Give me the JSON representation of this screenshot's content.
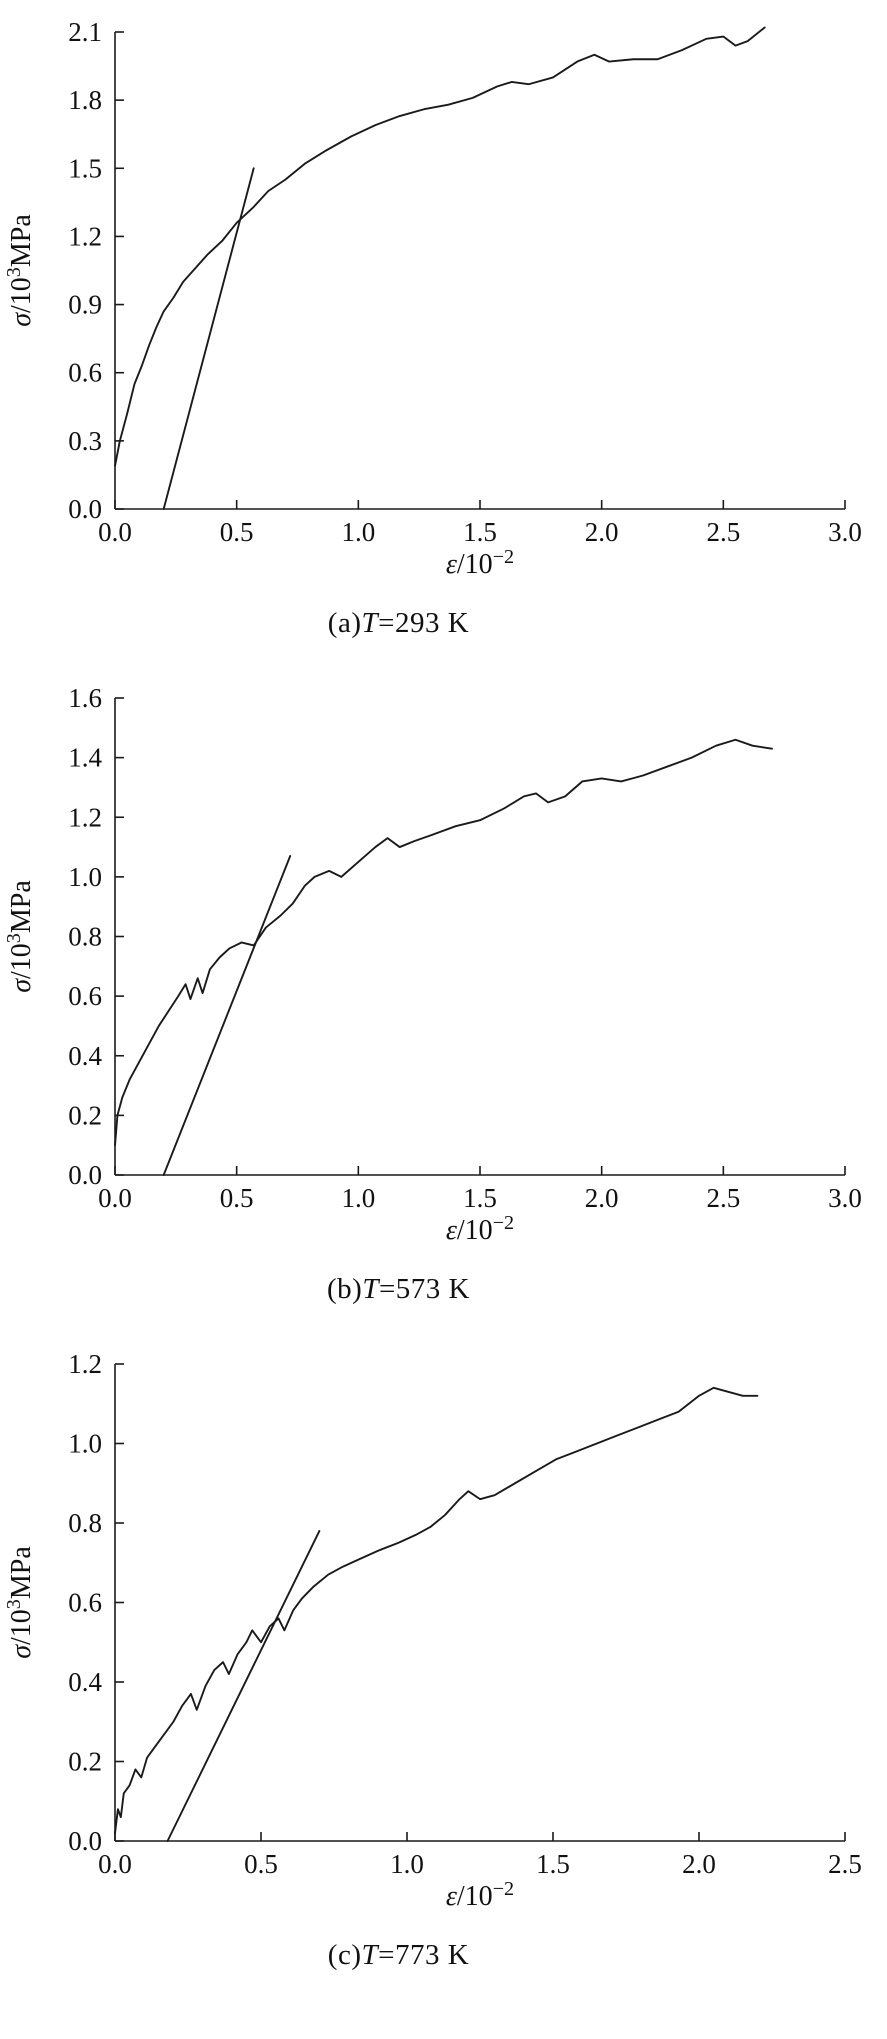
{
  "style": {
    "background": "#ffffff",
    "line_color": "#1a1a1a",
    "text_color": "#111111"
  },
  "chart_data": [
    {
      "id": "a",
      "type": "line",
      "caption": {
        "prefix": "(a)",
        "symbol": "T",
        "suffix": "=293 K"
      },
      "xlabel": "ε/10⁻²",
      "ylabel": "σ/10³MPa",
      "xlabel_parts": [
        {
          "t": "ε",
          "i": 1
        },
        {
          "t": "/10"
        },
        {
          "t": "−2",
          "s": 1
        }
      ],
      "ylabel_parts": [
        {
          "t": "σ",
          "i": 1
        },
        {
          "t": "/10"
        },
        {
          "t": "3",
          "s": 1
        },
        {
          "t": "MPa"
        }
      ],
      "xlim": [
        0,
        3.0
      ],
      "ylim": [
        0,
        2.1
      ],
      "xticks": [
        0.0,
        0.5,
        1.0,
        1.5,
        2.0,
        2.5,
        3.0
      ],
      "yticks": [
        0.0,
        0.3,
        0.6,
        0.9,
        1.2,
        1.5,
        1.8,
        2.1
      ],
      "grid": false,
      "legend": null,
      "series": [
        {
          "name": "stress-strain-curve",
          "points": [
            [
              0,
              0.19
            ],
            [
              0.02,
              0.3
            ],
            [
              0.05,
              0.42
            ],
            [
              0.08,
              0.55
            ],
            [
              0.11,
              0.63
            ],
            [
              0.14,
              0.72
            ],
            [
              0.17,
              0.8
            ],
            [
              0.2,
              0.87
            ],
            [
              0.24,
              0.93
            ],
            [
              0.28,
              1.0
            ],
            [
              0.33,
              1.06
            ],
            [
              0.38,
              1.12
            ],
            [
              0.44,
              1.18
            ],
            [
              0.5,
              1.26
            ],
            [
              0.57,
              1.33
            ],
            [
              0.63,
              1.4
            ],
            [
              0.7,
              1.45
            ],
            [
              0.78,
              1.52
            ],
            [
              0.87,
              1.58
            ],
            [
              0.97,
              1.64
            ],
            [
              1.07,
              1.69
            ],
            [
              1.17,
              1.73
            ],
            [
              1.27,
              1.76
            ],
            [
              1.37,
              1.78
            ],
            [
              1.47,
              1.81
            ],
            [
              1.57,
              1.86
            ],
            [
              1.63,
              1.88
            ],
            [
              1.7,
              1.87
            ],
            [
              1.8,
              1.9
            ],
            [
              1.9,
              1.97
            ],
            [
              1.97,
              2.0
            ],
            [
              2.03,
              1.97
            ],
            [
              2.13,
              1.98
            ],
            [
              2.23,
              1.98
            ],
            [
              2.33,
              2.02
            ],
            [
              2.43,
              2.07
            ],
            [
              2.5,
              2.08
            ],
            [
              2.55,
              2.04
            ],
            [
              2.6,
              2.06
            ],
            [
              2.67,
              2.12
            ]
          ]
        },
        {
          "name": "elastic-tangent-line",
          "points": [
            [
              0.2,
              0
            ],
            [
              0.57,
              1.5
            ]
          ]
        }
      ]
    },
    {
      "id": "b",
      "type": "line",
      "caption": {
        "prefix": "(b)",
        "symbol": "T",
        "suffix": "=573 K"
      },
      "xlabel": "ε/10⁻²",
      "ylabel": "σ/10³MPa",
      "xlabel_parts": [
        {
          "t": "ε",
          "i": 1
        },
        {
          "t": "/10"
        },
        {
          "t": "−2",
          "s": 1
        }
      ],
      "ylabel_parts": [
        {
          "t": "σ",
          "i": 1
        },
        {
          "t": "/10"
        },
        {
          "t": "3",
          "s": 1
        },
        {
          "t": "MPa"
        }
      ],
      "xlim": [
        0,
        3.0
      ],
      "ylim": [
        0,
        1.6
      ],
      "xticks": [
        0.0,
        0.5,
        1.0,
        1.5,
        2.0,
        2.5,
        3.0
      ],
      "yticks": [
        0.0,
        0.2,
        0.4,
        0.6,
        0.8,
        1.0,
        1.2,
        1.4,
        1.6
      ],
      "grid": false,
      "legend": null,
      "series": [
        {
          "name": "stress-strain-curve",
          "points": [
            [
              0,
              0.1
            ],
            [
              0.01,
              0.2
            ],
            [
              0.03,
              0.26
            ],
            [
              0.06,
              0.32
            ],
            [
              0.1,
              0.38
            ],
            [
              0.14,
              0.44
            ],
            [
              0.18,
              0.5
            ],
            [
              0.22,
              0.55
            ],
            [
              0.26,
              0.6
            ],
            [
              0.29,
              0.64
            ],
            [
              0.31,
              0.59
            ],
            [
              0.34,
              0.66
            ],
            [
              0.36,
              0.61
            ],
            [
              0.39,
              0.69
            ],
            [
              0.43,
              0.73
            ],
            [
              0.47,
              0.76
            ],
            [
              0.52,
              0.78
            ],
            [
              0.57,
              0.77
            ],
            [
              0.62,
              0.83
            ],
            [
              0.68,
              0.87
            ],
            [
              0.73,
              0.91
            ],
            [
              0.78,
              0.97
            ],
            [
              0.82,
              1.0
            ],
            [
              0.88,
              1.02
            ],
            [
              0.93,
              1.0
            ],
            [
              1.0,
              1.05
            ],
            [
              1.07,
              1.1
            ],
            [
              1.12,
              1.13
            ],
            [
              1.17,
              1.1
            ],
            [
              1.23,
              1.12
            ],
            [
              1.3,
              1.14
            ],
            [
              1.4,
              1.17
            ],
            [
              1.5,
              1.19
            ],
            [
              1.6,
              1.23
            ],
            [
              1.68,
              1.27
            ],
            [
              1.73,
              1.28
            ],
            [
              1.78,
              1.25
            ],
            [
              1.85,
              1.27
            ],
            [
              1.92,
              1.32
            ],
            [
              2.0,
              1.33
            ],
            [
              2.08,
              1.32
            ],
            [
              2.17,
              1.34
            ],
            [
              2.27,
              1.37
            ],
            [
              2.37,
              1.4
            ],
            [
              2.47,
              1.44
            ],
            [
              2.55,
              1.46
            ],
            [
              2.62,
              1.44
            ],
            [
              2.7,
              1.43
            ]
          ]
        },
        {
          "name": "elastic-tangent-line",
          "points": [
            [
              0.2,
              0
            ],
            [
              0.72,
              1.07
            ]
          ]
        }
      ]
    },
    {
      "id": "c",
      "type": "line",
      "caption": {
        "prefix": "(c)",
        "symbol": "T",
        "suffix": "=773 K"
      },
      "xlabel": "ε/10⁻²",
      "ylabel": "σ/10³MPa",
      "xlabel_parts": [
        {
          "t": "ε",
          "i": 1
        },
        {
          "t": "/10"
        },
        {
          "t": "−2",
          "s": 1
        }
      ],
      "ylabel_parts": [
        {
          "t": "σ",
          "i": 1
        },
        {
          "t": "/10"
        },
        {
          "t": "3",
          "s": 1
        },
        {
          "t": "MPa"
        }
      ],
      "xlim": [
        0,
        2.5
      ],
      "ylim": [
        0,
        1.2
      ],
      "xticks": [
        0.0,
        0.5,
        1.0,
        1.5,
        2.0,
        2.5
      ],
      "yticks": [
        0.0,
        0.2,
        0.4,
        0.6,
        0.8,
        1.0,
        1.2
      ],
      "grid": false,
      "legend": null,
      "series": [
        {
          "name": "stress-strain-curve",
          "points": [
            [
              0,
              0.02
            ],
            [
              0.01,
              0.08
            ],
            [
              0.02,
              0.06
            ],
            [
              0.03,
              0.12
            ],
            [
              0.05,
              0.14
            ],
            [
              0.07,
              0.18
            ],
            [
              0.09,
              0.16
            ],
            [
              0.11,
              0.21
            ],
            [
              0.14,
              0.24
            ],
            [
              0.17,
              0.27
            ],
            [
              0.2,
              0.3
            ],
            [
              0.23,
              0.34
            ],
            [
              0.26,
              0.37
            ],
            [
              0.28,
              0.33
            ],
            [
              0.31,
              0.39
            ],
            [
              0.34,
              0.43
            ],
            [
              0.37,
              0.45
            ],
            [
              0.39,
              0.42
            ],
            [
              0.42,
              0.47
            ],
            [
              0.45,
              0.5
            ],
            [
              0.47,
              0.53
            ],
            [
              0.5,
              0.5
            ],
            [
              0.53,
              0.54
            ],
            [
              0.56,
              0.56
            ],
            [
              0.58,
              0.53
            ],
            [
              0.61,
              0.58
            ],
            [
              0.64,
              0.61
            ],
            [
              0.68,
              0.64
            ],
            [
              0.73,
              0.67
            ],
            [
              0.78,
              0.69
            ],
            [
              0.84,
              0.71
            ],
            [
              0.9,
              0.73
            ],
            [
              0.97,
              0.75
            ],
            [
              1.03,
              0.77
            ],
            [
              1.08,
              0.79
            ],
            [
              1.13,
              0.82
            ],
            [
              1.18,
              0.86
            ],
            [
              1.21,
              0.88
            ],
            [
              1.25,
              0.86
            ],
            [
              1.3,
              0.87
            ],
            [
              1.37,
              0.9
            ],
            [
              1.44,
              0.93
            ],
            [
              1.51,
              0.96
            ],
            [
              1.58,
              0.98
            ],
            [
              1.65,
              1.0
            ],
            [
              1.72,
              1.02
            ],
            [
              1.79,
              1.04
            ],
            [
              1.86,
              1.06
            ],
            [
              1.93,
              1.08
            ],
            [
              2.0,
              1.12
            ],
            [
              2.05,
              1.14
            ],
            [
              2.1,
              1.13
            ],
            [
              2.15,
              1.12
            ],
            [
              2.2,
              1.12
            ]
          ]
        },
        {
          "name": "elastic-tangent-line",
          "points": [
            [
              0.18,
              0
            ],
            [
              0.7,
              0.78
            ]
          ]
        }
      ]
    }
  ]
}
